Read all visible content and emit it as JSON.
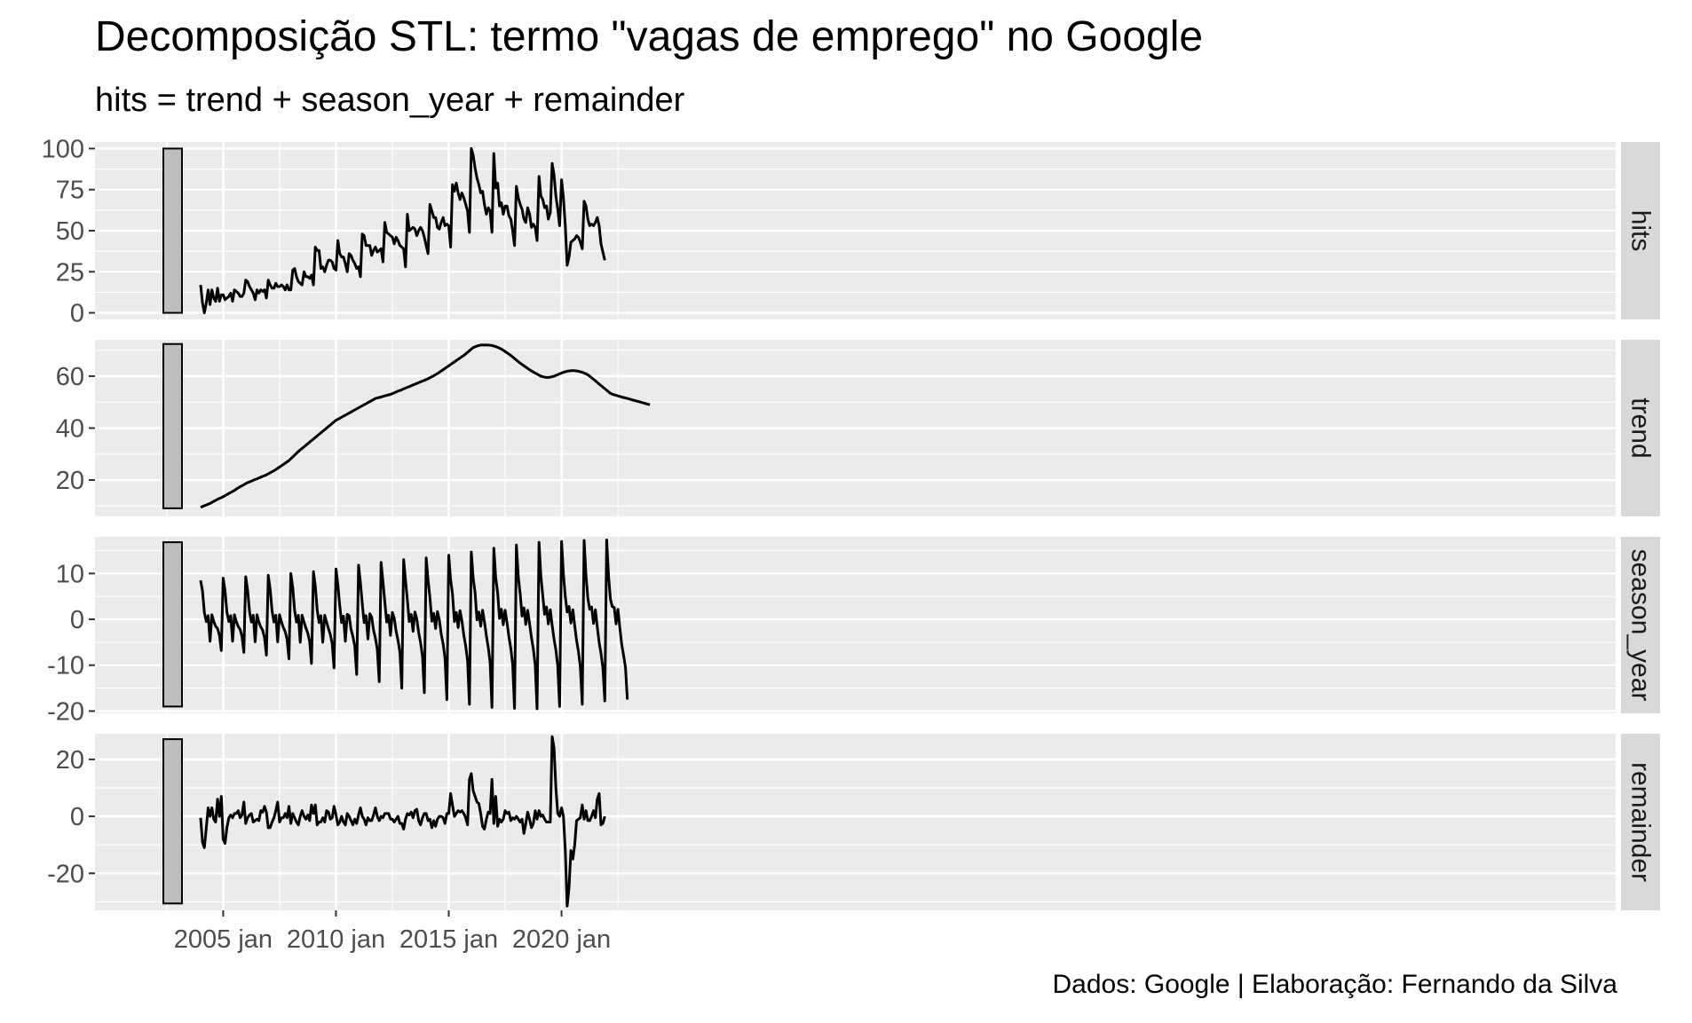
{
  "title": "Decomposição STL: termo \"vagas de emprego\" no Google",
  "subtitle": "hits = trend + season_year + remainder",
  "caption": "Dados: Google | Elaboração: Fernando da Silva",
  "colors": {
    "panel_bg": "#ebebeb",
    "grid": "#ffffff",
    "strip_bg": "#d9d9d9",
    "line": "#000000",
    "scale_bar": "#bebebe"
  },
  "chart_data": {
    "type": "line",
    "x_axis": {
      "start": "2004-01",
      "end": "2021-12",
      "frequency": "monthly",
      "ticks": [
        "2005 jan",
        "2010 jan",
        "2015 jan",
        "2020 jan"
      ]
    },
    "panels": [
      {
        "name": "hits",
        "yticks": [
          "0",
          "25",
          "50",
          "75",
          "100"
        ],
        "ylim": [
          -4,
          104
        ],
        "values": [
          17,
          6,
          0,
          6,
          14,
          5,
          14,
          9,
          7,
          15,
          7,
          11,
          11,
          8,
          9,
          10,
          12,
          7,
          14,
          13,
          12,
          10,
          10,
          12,
          20,
          19,
          16,
          14,
          12,
          8,
          14,
          12,
          14,
          13,
          14,
          9,
          20,
          17,
          15,
          15,
          18,
          16,
          16,
          17,
          16,
          14,
          17,
          14,
          14,
          26,
          27,
          22,
          19,
          18,
          17,
          25,
          22,
          22,
          21,
          23,
          17,
          40,
          38,
          38,
          27,
          28,
          25,
          29,
          32,
          32,
          31,
          27,
          26,
          44,
          36,
          34,
          34,
          30,
          25,
          36,
          35,
          32,
          30,
          27,
          28,
          22,
          48,
          47,
          41,
          41,
          41,
          35,
          38,
          40,
          37,
          38,
          39,
          31,
          55,
          49,
          48,
          47,
          46,
          42,
          46,
          44,
          41,
          40,
          39,
          28,
          60,
          50,
          51,
          52,
          51,
          47,
          50,
          52,
          50,
          46,
          41,
          36,
          66,
          62,
          58,
          58,
          52,
          51,
          55,
          58,
          53,
          54,
          53,
          40,
          78,
          74,
          79,
          73,
          69,
          73,
          70,
          66,
          62,
          49,
          100,
          96,
          88,
          82,
          78,
          73,
          74,
          66,
          60,
          64,
          62,
          49,
          97,
          76,
          79,
          65,
          67,
          60,
          65,
          65,
          59,
          57,
          50,
          41,
          77,
          70,
          66,
          63,
          57,
          55,
          64,
          60,
          52,
          54,
          52,
          44,
          83,
          71,
          69,
          64,
          65,
          57,
          61,
          91,
          84,
          71,
          63,
          53,
          81,
          70,
          53,
          29,
          34,
          43,
          44,
          45,
          47,
          46,
          43,
          39,
          68,
          65,
          57,
          53,
          54,
          53,
          55,
          58,
          53,
          42,
          37,
          32
        ]
      },
      {
        "name": "trend",
        "yticks": [
          "20",
          "40",
          "60"
        ],
        "ylim": [
          6,
          74
        ],
        "values": [
          9.5,
          9.8,
          10.1,
          10.4,
          10.7,
          11,
          11.4,
          11.8,
          12.2,
          12.6,
          12.9,
          13.2,
          13.6,
          14,
          14.4,
          14.8,
          15.2,
          15.6,
          16,
          16.5,
          17,
          17.4,
          17.8,
          18.2,
          18.6,
          19,
          19.3,
          19.6,
          19.9,
          20.2,
          20.5,
          20.8,
          21.1,
          21.4,
          21.7,
          22,
          22.4,
          22.8,
          23.2,
          23.6,
          24,
          24.5,
          25,
          25.5,
          26,
          26.5,
          27,
          27.5,
          28.2,
          28.9,
          29.6,
          30.3,
          31,
          31.6,
          32.2,
          32.8,
          33.4,
          34,
          34.6,
          35.2,
          35.8,
          36.4,
          37,
          37.6,
          38.2,
          38.8,
          39.4,
          40,
          40.6,
          41.2,
          41.8,
          42.4,
          43,
          43.4,
          43.8,
          44.2,
          44.6,
          45,
          45.4,
          45.8,
          46.2,
          46.6,
          47,
          47.4,
          47.8,
          48.2,
          48.6,
          49,
          49.4,
          49.8,
          50.2,
          50.6,
          51,
          51.4,
          51.6,
          51.8,
          52,
          52.2,
          52.4,
          52.6,
          52.8,
          53,
          53.3,
          53.6,
          53.9,
          54.2,
          54.5,
          54.8,
          55.1,
          55.4,
          55.7,
          56,
          56.3,
          56.6,
          56.9,
          57.2,
          57.5,
          57.8,
          58.1,
          58.4,
          58.7,
          59,
          59.4,
          59.8,
          60.2,
          60.6,
          61,
          61.5,
          62,
          62.5,
          63,
          63.5,
          64,
          64.5,
          65,
          65.5,
          66,
          66.5,
          67,
          67.5,
          68,
          68.6,
          69.2,
          69.8,
          70.4,
          71,
          71.3,
          71.6,
          71.8,
          72,
          72,
          72,
          72,
          72,
          71.9,
          71.8,
          71.6,
          71.4,
          71.1,
          70.8,
          70.4,
          70,
          69.5,
          69,
          68.5,
          68,
          67.4,
          66.8,
          66.2,
          65.6,
          65,
          64.5,
          64,
          63.5,
          63,
          62.5,
          62,
          61.6,
          61.2,
          60.8,
          60.4,
          60,
          59.8,
          59.6,
          59.5,
          59.5,
          59.6,
          59.8,
          60,
          60.3,
          60.6,
          60.9,
          61.2,
          61.5,
          61.7,
          61.9,
          62,
          62.1,
          62.1,
          62.1,
          62,
          61.9,
          61.7,
          61.5,
          61.2,
          60.9,
          60.5,
          60,
          59.4,
          58.8,
          58.2,
          57.6,
          57,
          56.4,
          55.8,
          55.2,
          54.6,
          54,
          53.4,
          53.1,
          52.8,
          52.6,
          52.4,
          52.2,
          52,
          51.8,
          51.6,
          51.4,
          51.2,
          51,
          50.8,
          50.6,
          50.4,
          50.2,
          50,
          49.8,
          49.6,
          49.4,
          49.2,
          49
        ]
      },
      {
        "name": "season_year",
        "yticks": [
          "-20",
          "-10",
          "0",
          "10"
        ],
        "ylim": [
          -20.5,
          18
        ],
        "values": [
          8.5,
          6.2,
          1.5,
          -0.5,
          0.8,
          -4.8,
          1,
          -0.5,
          -1.5,
          -2,
          -3.5,
          -6.8,
          9,
          6.2,
          1.6,
          -0.5,
          0.8,
          -4.8,
          1,
          -0.5,
          -1.6,
          -2.2,
          -3.7,
          -7.2,
          9.3,
          6.4,
          1.7,
          -0.6,
          0.9,
          -4.9,
          1,
          -0.6,
          -1.7,
          -2.4,
          -4,
          -7.8,
          9.6,
          6.6,
          1.8,
          -0.6,
          0.9,
          -4.9,
          1,
          -0.6,
          -1.8,
          -2.7,
          -4.4,
          -8.6,
          10,
          6.9,
          1.9,
          -0.6,
          0.9,
          -5,
          0.9,
          -0.6,
          -1.9,
          -3,
          -4.8,
          -9.6,
          10.4,
          7.2,
          2.1,
          -0.7,
          0.8,
          -5,
          0.9,
          -0.6,
          -2,
          -3.3,
          -5.3,
          -10.6,
          11,
          7.6,
          3,
          -0.7,
          0.7,
          -4.8,
          1.1,
          0.8,
          -2.2,
          -3.7,
          -5.8,
          -12,
          11.8,
          8,
          3.4,
          -0.7,
          0.8,
          -4.3,
          1.2,
          0.5,
          -2.4,
          -4.1,
          -6.5,
          -13.6,
          12.4,
          8.2,
          3.8,
          -0.6,
          0.9,
          -3.5,
          1.5,
          0.3,
          -2.6,
          -4.5,
          -7.2,
          -15,
          13,
          8.5,
          4.2,
          -0.5,
          1.1,
          -2.6,
          1.6,
          0.1,
          -2.9,
          -5,
          -8,
          -16,
          13.4,
          8.6,
          4.7,
          -0.4,
          1.3,
          -2,
          1.7,
          -0.1,
          -3.2,
          -5.4,
          -8.5,
          -17.5,
          14,
          8.6,
          5.6,
          -0.5,
          1.5,
          -1.8,
          1.9,
          -0.3,
          -3.5,
          -5.8,
          -9,
          -18.5,
          14.7,
          9,
          5.8,
          -0.1,
          1.6,
          -1.5,
          2,
          -0.5,
          -3.6,
          -6.1,
          -9.4,
          -19.2,
          15.5,
          9.1,
          5.8,
          0.2,
          2.2,
          -1.2,
          2,
          -0.8,
          -3.8,
          -6.3,
          -9.8,
          -19.4,
          16.2,
          9.2,
          5.5,
          0.7,
          2.5,
          -1.1,
          2,
          -1,
          -4,
          -6.5,
          -10,
          -19.5,
          16.8,
          9.4,
          5.2,
          1.1,
          2.7,
          -1,
          2.1,
          -1.3,
          -4.3,
          -6.7,
          -10.2,
          -19,
          17,
          9.8,
          5,
          1.6,
          2.8,
          -0.8,
          2.1,
          -1.4,
          -4.6,
          -7,
          -10.3,
          -18.5,
          17.2,
          9.6,
          4.6,
          2.2,
          2.7,
          -0.9,
          2.1,
          -1.6,
          -5,
          -7.4,
          -10.5,
          -17.8,
          17.3,
          9.5,
          4.4,
          2.8,
          2.6,
          -1,
          2.2,
          -1.8,
          -5.4,
          -7.8,
          -10.5,
          -17.5
        ]
      },
      {
        "name": "remainder",
        "yticks": [
          "-20",
          "0",
          "20"
        ],
        "ylim": [
          -33,
          29
        ],
        "values": [
          -0.5,
          -9,
          -11,
          -4,
          3,
          0,
          3,
          -1,
          -2,
          6,
          0,
          7,
          -8,
          -9.5,
          -4,
          -0.5,
          0.5,
          -0.5,
          1,
          1,
          2,
          -0.5,
          0.5,
          5,
          -2.5,
          -0.5,
          0.5,
          1,
          -2,
          -1.5,
          -1,
          -1.5,
          2,
          1.5,
          3.5,
          1.5,
          -4,
          -4,
          -2,
          -0.5,
          2,
          5,
          -2,
          -0.5,
          -0.5,
          1,
          -0.5,
          3.5,
          -2.5,
          1,
          -0.5,
          -2,
          -3,
          0,
          2,
          0,
          -1,
          0.5,
          -1.5,
          4,
          1,
          4,
          -3,
          -2,
          -2,
          -0.5,
          -2,
          2,
          1.5,
          -1,
          -0.5,
          3.5,
          0.5,
          -3,
          -2,
          0,
          -2,
          -3,
          1,
          0,
          -1.5,
          -3,
          -1,
          -2.5,
          0.5,
          3,
          0,
          -1,
          -3,
          -0.5,
          -1.5,
          -1.5,
          0.5,
          3,
          0,
          -1.5,
          0,
          -0.5,
          1,
          1,
          1,
          -1,
          -1,
          -2,
          -1,
          0,
          -2.5,
          -2.5,
          -4.5,
          -1,
          1,
          0.5,
          1.5,
          -0.5,
          2,
          2.5,
          -1.5,
          -3,
          -0.5,
          1,
          1,
          -1.5,
          -1,
          -4,
          -1.5,
          -3.5,
          -1,
          0,
          0,
          -0.5,
          -2.5,
          1,
          1,
          8,
          4,
          0,
          1,
          2,
          1.5,
          2,
          1,
          -0.5,
          -3,
          13,
          15,
          9,
          7,
          5,
          4.5,
          1,
          -3.5,
          -4.5,
          -1,
          1.5,
          1,
          13,
          -2.5,
          7,
          -3.5,
          -1,
          -2,
          -1,
          2,
          1,
          1.5,
          -1.5,
          -0.5,
          -1,
          0,
          -1,
          -2,
          -1,
          -6,
          -2.5,
          1.5,
          -1,
          -4,
          -2.5,
          2,
          -1,
          2,
          0,
          0.5,
          -1,
          -2,
          -2,
          -2,
          28,
          24,
          10,
          1,
          0,
          3,
          0,
          -12,
          -31.5,
          -25,
          -12,
          -15,
          -10,
          -1.5,
          -1,
          -0.5,
          4,
          -1,
          2,
          -1.5,
          -1.5,
          0,
          2,
          -0.5,
          6,
          8,
          -3,
          -2.5,
          0
        ]
      }
    ]
  }
}
